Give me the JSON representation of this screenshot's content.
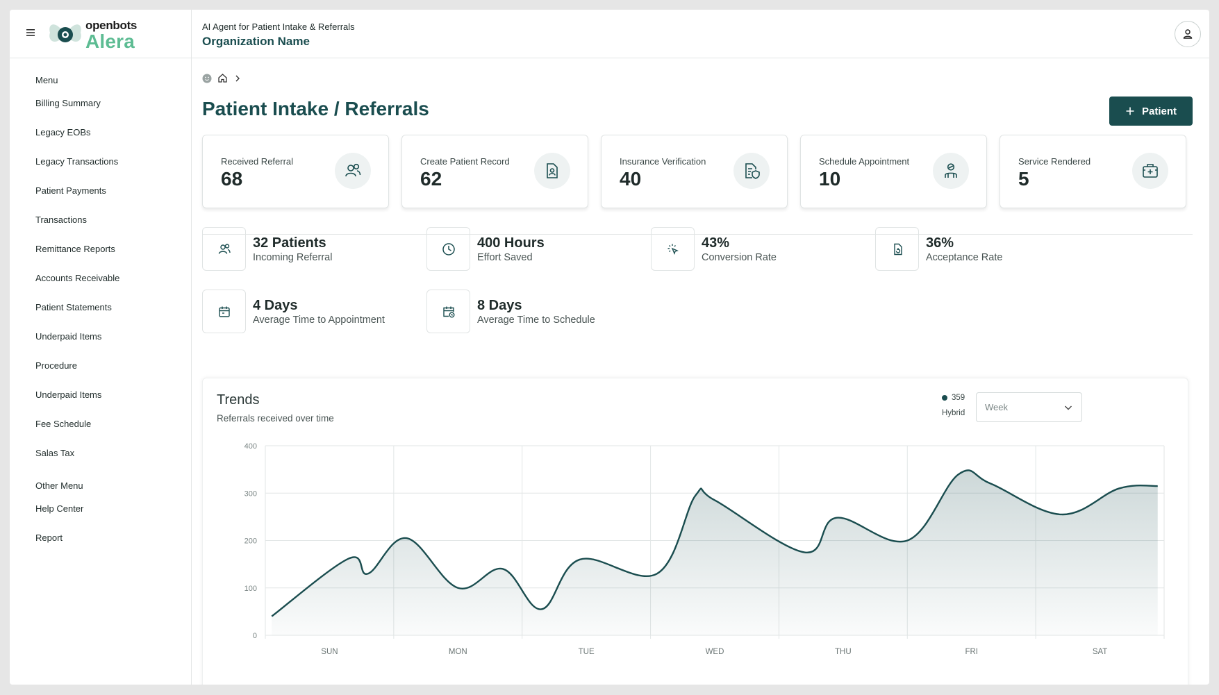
{
  "brand": {
    "logo_top": "openbots",
    "logo_bottom": "Alera"
  },
  "header": {
    "subtitle": "AI Agent for Patient Intake & Referrals",
    "org": "Organization Name"
  },
  "sidebar": {
    "menu_heading": "Menu",
    "items": [
      {
        "label": "Billing Summary"
      },
      {
        "label": "Legacy EOBs"
      },
      {
        "label": "Legacy Transactions"
      },
      {
        "label": "Patient Payments"
      },
      {
        "label": "Transactions"
      },
      {
        "label": "Remittance Reports"
      },
      {
        "label": "Accounts Receivable"
      },
      {
        "label": "Patient Statements"
      },
      {
        "label": "Underpaid Items"
      },
      {
        "label": "Procedure"
      },
      {
        "label": "Underpaid Items"
      },
      {
        "label": "Fee Schedule"
      },
      {
        "label": "Salas Tax"
      }
    ],
    "other_heading": "Other Menu",
    "other_items": [
      {
        "label": "Help Center"
      },
      {
        "label": "Report"
      }
    ]
  },
  "page": {
    "title": "Patient Intake / Referrals",
    "add_button": "Patient"
  },
  "cards": [
    {
      "label": "Received Referral",
      "value": "68",
      "icon": "users-icon"
    },
    {
      "label": "Create Patient Record",
      "value": "62",
      "icon": "file-user-icon"
    },
    {
      "label": "Insurance Verification",
      "value": "40",
      "icon": "file-shield-icon"
    },
    {
      "label": "Schedule Appointment",
      "value": "10",
      "icon": "doctor-icon"
    },
    {
      "label": "Service Rendered",
      "value": "5",
      "icon": "medical-kit-icon"
    }
  ],
  "stats": [
    {
      "value": "32 Patients",
      "label": "Incoming Referral",
      "icon": "users-icon"
    },
    {
      "value": "400 Hours",
      "label": "Effort Saved",
      "icon": "clock-icon"
    },
    {
      "value": "43%",
      "label": "Conversion Rate",
      "icon": "cursor-click-icon"
    },
    {
      "value": "36%",
      "label": "Acceptance Rate",
      "icon": "file-refresh-icon"
    },
    {
      "value": "4 Days",
      "label": "Average Time to Appointment",
      "icon": "calendar-icon"
    },
    {
      "value": "8 Days",
      "label": "Average Time to Schedule",
      "icon": "calendar-clock-icon"
    }
  ],
  "trends": {
    "title": "Trends",
    "subtitle": "Referrals received over time",
    "legend_value": "359",
    "legend_name": "Hybrid",
    "range_selected": "Week"
  },
  "colors": {
    "accent": "#1a4d4f",
    "brand_green": "#5dbc93"
  },
  "chart_data": {
    "type": "area",
    "title": "Trends",
    "subtitle": "Referrals received over time",
    "xlabel": "",
    "ylabel": "",
    "categories": [
      "SUN",
      "MON",
      "TUE",
      "WED",
      "THU",
      "FRI",
      "SAT"
    ],
    "yticks": [
      0,
      100,
      200,
      300,
      400
    ],
    "ylim": [
      0,
      400
    ],
    "grid": true,
    "series": [
      {
        "name": "Hybrid",
        "x": [
          -0.45,
          0.15,
          0.3,
          0.6,
          1.0,
          1.35,
          1.65,
          1.95,
          2.55,
          2.85,
          3.0,
          3.7,
          3.95,
          4.5,
          4.9,
          5.15,
          5.7,
          6.15,
          6.45
        ],
        "y": [
          40,
          162,
          130,
          205,
          100,
          140,
          55,
          160,
          130,
          295,
          285,
          175,
          248,
          200,
          340,
          320,
          255,
          310,
          315
        ]
      }
    ]
  }
}
